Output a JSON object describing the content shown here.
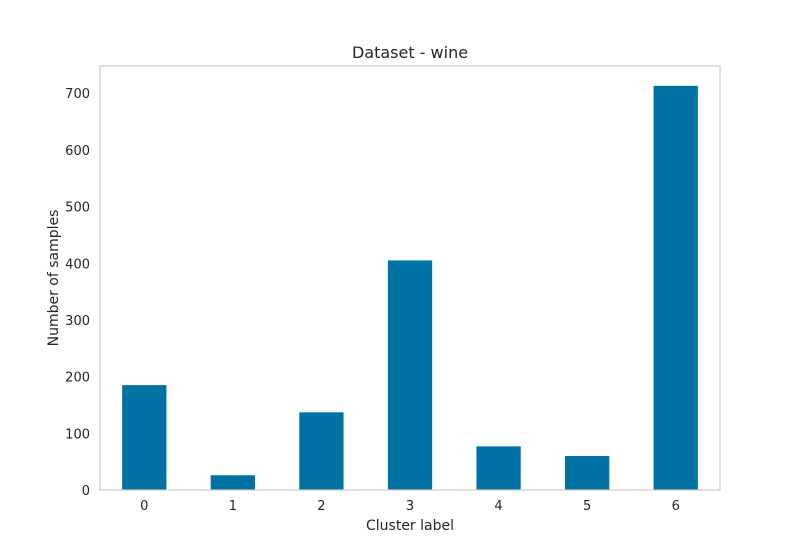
{
  "chart_data": {
    "type": "bar",
    "title": "Dataset - wine",
    "xlabel": "Cluster label",
    "ylabel": "Number of samples",
    "categories": [
      "0",
      "1",
      "2",
      "3",
      "4",
      "5",
      "6"
    ],
    "values": [
      185,
      26,
      137,
      405,
      77,
      60,
      713
    ],
    "ylim": [
      0,
      748
    ],
    "yticks": [
      0,
      100,
      200,
      300,
      400,
      500,
      600,
      700
    ],
    "grid": false,
    "bar_color": "#0072a3",
    "frame_color": "#cccccc"
  }
}
